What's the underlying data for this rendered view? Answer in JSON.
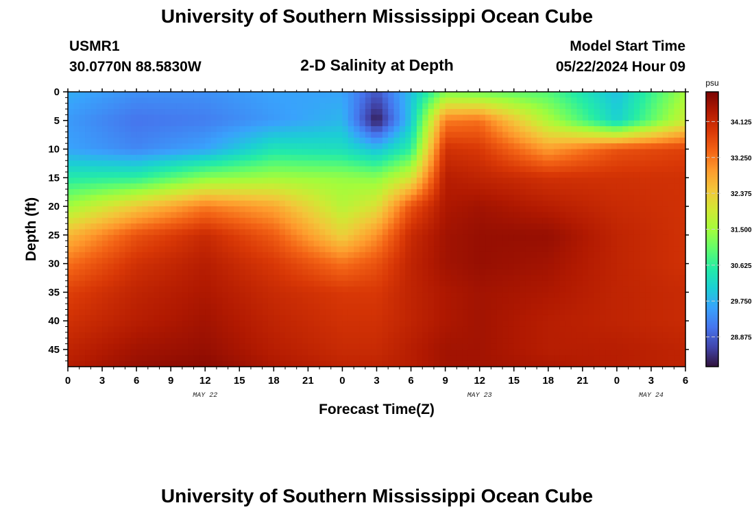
{
  "header": {
    "title_top": "University of Southern Mississippi Ocean Cube",
    "station_id": "USMR1",
    "coordinates": "30.0770N  88.5830W",
    "subtitle": "2-D Salinity at Depth",
    "model_start_label": "Model Start Time",
    "model_start_value": "05/22/2024 Hour 09",
    "title_bottom": "University of Southern Mississippi Ocean Cube"
  },
  "chart_data": {
    "type": "heatmap",
    "title": "2-D Salinity at Depth",
    "xlabel": "Forecast Time(Z)",
    "ylabel": "Depth (ft)",
    "x_tick_labels": [
      "0",
      "3",
      "6",
      "9",
      "12",
      "15",
      "18",
      "21",
      "0",
      "3",
      "6",
      "9",
      "12",
      "15",
      "18",
      "21",
      "0",
      "3",
      "6"
    ],
    "x_range_hours": [
      0,
      54
    ],
    "date_labels": [
      {
        "text": "MAY 22",
        "at_hour": 12
      },
      {
        "text": "MAY 23",
        "at_hour": 36
      },
      {
        "text": "MAY 24",
        "at_hour": 51
      }
    ],
    "y_tick_labels": [
      "0",
      "5",
      "10",
      "15",
      "20",
      "25",
      "30",
      "35",
      "40",
      "45"
    ],
    "y_range_ft": [
      0,
      48
    ],
    "colorbar": {
      "unit": "psu",
      "min": 28.15,
      "max": 34.85,
      "tick_labels": [
        "34.125",
        "33.250",
        "32.375",
        "31.500",
        "30.625",
        "29.750",
        "28.875"
      ],
      "colors": [
        "#30123b",
        "#4145ab",
        "#4675ed",
        "#39a2fc",
        "#1bcfd4",
        "#24eca6",
        "#61fc6c",
        "#a4fc3b",
        "#d1e834",
        "#f3c63a",
        "#fe9b2d",
        "#f36315",
        "#d93806",
        "#b11901",
        "#7a0403"
      ]
    },
    "salinity_psu_grid": {
      "hours": [
        0,
        6,
        12,
        18,
        24,
        27,
        30,
        33,
        36,
        42,
        48,
        54
      ],
      "depths_ft": [
        0,
        5,
        10,
        15,
        20,
        25,
        30,
        35,
        40,
        45,
        48
      ],
      "values": [
        [
          29.7,
          29.4,
          29.4,
          29.6,
          29.6,
          28.8,
          29.9,
          31.2,
          31.1,
          30.9,
          29.9,
          31.5
        ],
        [
          29.5,
          29.1,
          29.2,
          29.5,
          29.8,
          28.2,
          30.0,
          33.2,
          33.3,
          31.6,
          30.1,
          31.9
        ],
        [
          29.6,
          29.3,
          29.6,
          30.4,
          30.3,
          29.9,
          30.6,
          34.0,
          33.9,
          32.9,
          33.6,
          33.8
        ],
        [
          30.5,
          30.6,
          31.3,
          31.5,
          31.4,
          31.3,
          32.0,
          34.3,
          34.2,
          34.0,
          34.0,
          34.0
        ],
        [
          31.5,
          32.4,
          33.2,
          32.8,
          31.7,
          32.1,
          33.6,
          34.4,
          34.5,
          34.3,
          34.1,
          34.0
        ],
        [
          32.6,
          33.6,
          34.1,
          33.5,
          32.3,
          33.0,
          34.1,
          34.5,
          34.6,
          34.6,
          34.2,
          34.0
        ],
        [
          33.3,
          34.0,
          34.3,
          33.9,
          33.3,
          33.6,
          34.2,
          34.5,
          34.6,
          34.5,
          34.2,
          34.0
        ],
        [
          33.8,
          34.2,
          34.4,
          34.1,
          33.9,
          33.9,
          34.2,
          34.4,
          34.5,
          34.4,
          34.2,
          34.1
        ],
        [
          34.0,
          34.3,
          34.5,
          34.2,
          34.0,
          34.0,
          34.2,
          34.4,
          34.5,
          34.3,
          34.2,
          34.1
        ],
        [
          34.2,
          34.5,
          34.6,
          34.3,
          34.1,
          34.1,
          34.3,
          34.5,
          34.5,
          34.3,
          34.3,
          34.2
        ],
        [
          34.3,
          34.6,
          34.7,
          34.4,
          34.2,
          34.2,
          34.3,
          34.5,
          34.5,
          34.4,
          34.3,
          34.2
        ]
      ]
    }
  }
}
